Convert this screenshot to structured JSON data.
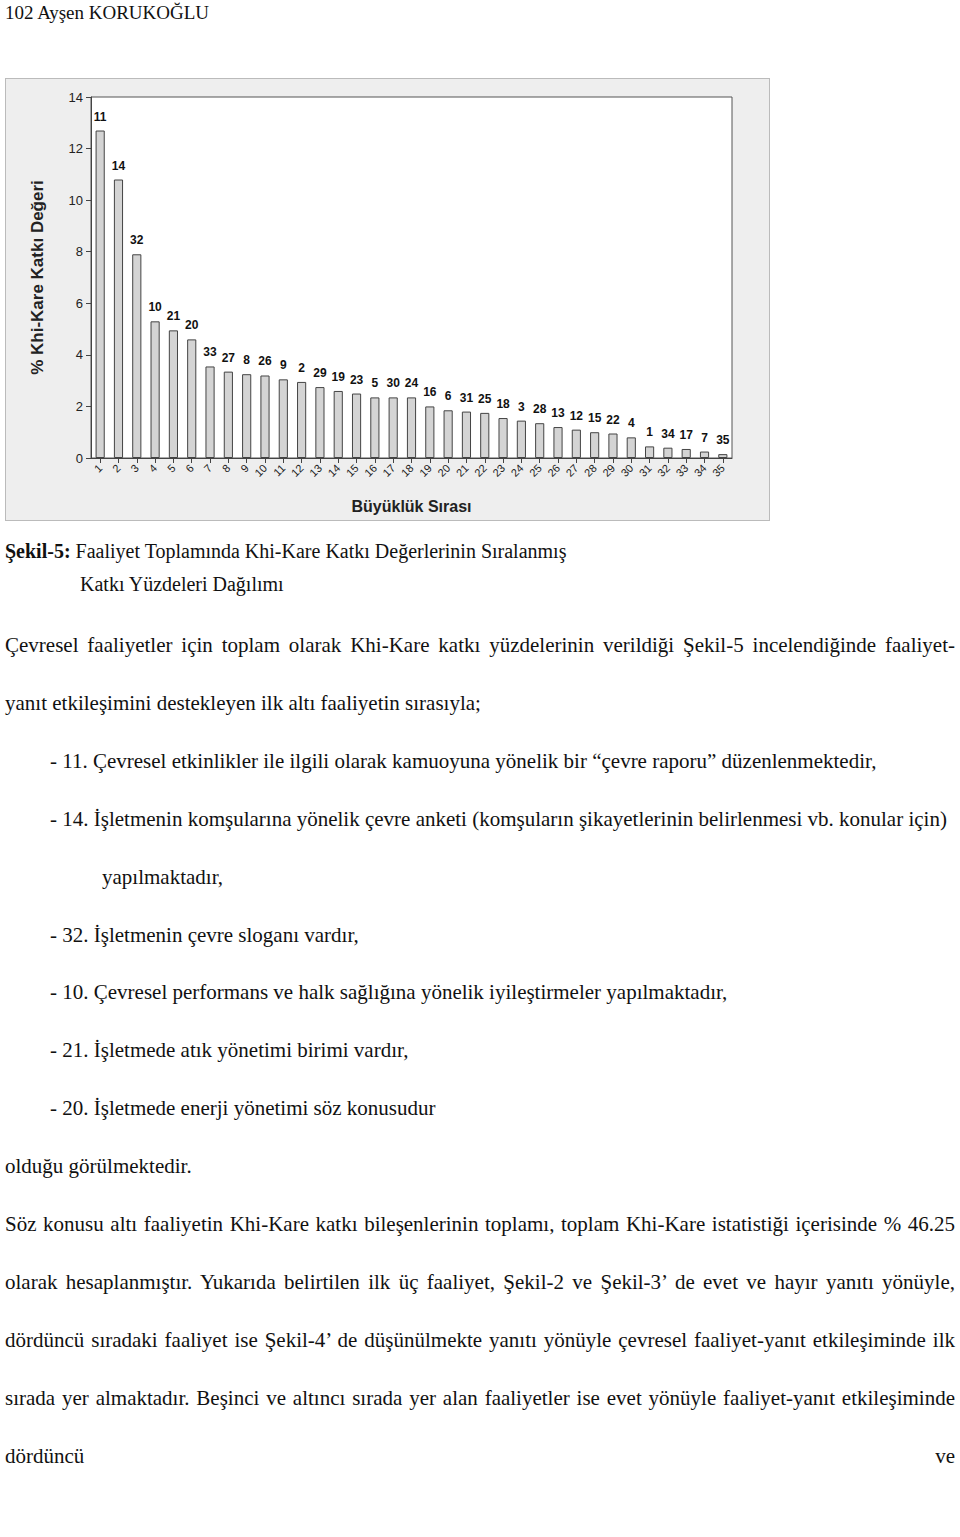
{
  "header": {
    "title": "102 Ayşen KORUKOĞLU"
  },
  "chart_data": {
    "type": "bar",
    "x_label": "Büyüklük Sırası",
    "y_label": "% Khi-Kare Katkı Değeri",
    "categories": [
      "1",
      "2",
      "3",
      "4",
      "5",
      "6",
      "7",
      "8",
      "9",
      "10",
      "11",
      "12",
      "13",
      "14",
      "15",
      "16",
      "17",
      "18",
      "19",
      "20",
      "21",
      "22",
      "23",
      "24",
      "25",
      "26",
      "27",
      "28",
      "29",
      "30",
      "31",
      "32",
      "33",
      "34",
      "35"
    ],
    "values": [
      12.7,
      10.8,
      7.9,
      5.3,
      4.95,
      4.6,
      3.55,
      3.35,
      3.25,
      3.2,
      3.05,
      2.95,
      2.75,
      2.6,
      2.5,
      2.35,
      2.35,
      2.35,
      2.0,
      1.85,
      1.8,
      1.75,
      1.55,
      1.45,
      1.35,
      1.2,
      1.1,
      1.0,
      0.95,
      0.8,
      0.45,
      0.4,
      0.35,
      0.25,
      0.15
    ],
    "annotations": [
      "11",
      "14",
      "32",
      "10",
      "21",
      "20",
      "33",
      "27",
      "8",
      "26",
      "9",
      "2",
      "29",
      "19",
      "23",
      "5",
      "30",
      "24",
      "16",
      "6",
      "31",
      "25",
      "18",
      "3",
      "28",
      "13",
      "12",
      "15",
      "22",
      "4",
      "1",
      "34",
      "17",
      "7",
      "35"
    ],
    "color": "#d4d4d4",
    "ylim": [
      0,
      14
    ],
    "yticks": [
      0,
      2,
      4,
      6,
      8,
      10,
      12,
      14
    ],
    "grid": false
  },
  "caption": {
    "label": "Şekil-5:",
    "lines": [
      "Faaliyet Toplamında Khi-Kare Katkı Değerlerinin Sıralanmış",
      "Katkı Yüzdeleri Dağılımı"
    ]
  },
  "body": {
    "intro": "Çevresel faaliyetler için toplam olarak Khi-Kare katkı yüzdelerinin verildiği Şekil-5 incelendiğinde faaliyet-yanıt etkileşimini destekleyen ilk altı faaliyetin sırasıyla;",
    "items": [
      "- 11. Çevresel etkinlikler ile ilgili olarak kamuoyuna yönelik bir “çevre raporu” düzenlenmektedir,",
      "- 14. İşletmenin komşularına yönelik çevre anketi (komşuların şikayetlerinin belirlenmesi vb. konular için) yapılmaktadır,",
      "- 32. İşletmenin çevre sloganı vardır,",
      "- 10. Çevresel performans ve halk sağlığına yönelik iyileştirmeler yapılmaktadır,",
      "- 21. İşletmede atık yönetimi birimi vardır,",
      "- 20. İşletmede enerji yönetimi söz konusudur"
    ],
    "closing": "olduğu görülmektedir.",
    "paragraph": "Söz konusu altı faaliyetin Khi-Kare katkı bileşenlerinin toplamı, toplam Khi-Kare istatistiği içerisinde % 46.25 olarak hesaplanmıştır. Yukarıda belirtilen ilk üç faaliyet, Şekil-2 ve Şekil-3’ de evet ve hayır yanıtı yönüyle, dördüncü sıradaki faaliyet ise Şekil-4’ de düşünülmekte yanıtı yönüyle çevresel faaliyet-yanıt etkileşiminde ilk sırada yer almaktadır. Beşinci ve altıncı sırada yer alan faaliyetler ise evet yönüyle faaliyet-yanıt etkileşiminde dördüncü ve"
  }
}
